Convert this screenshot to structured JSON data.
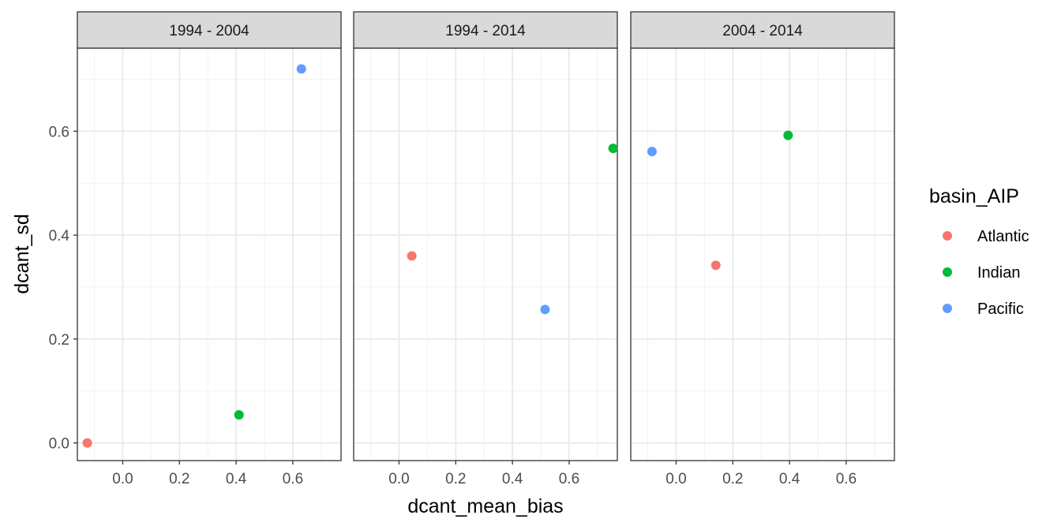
{
  "chart_data": {
    "type": "scatter",
    "xlabel": "dcant_mean_bias",
    "ylabel": "dcant_sd",
    "xlim": [
      -0.16,
      0.77
    ],
    "ylim": [
      -0.034,
      0.76
    ],
    "x_ticks": [
      0.0,
      0.2,
      0.4,
      0.6
    ],
    "x_tick_labels": [
      "0.0",
      "0.2",
      "0.4",
      "0.6"
    ],
    "y_ticks": [
      0.0,
      0.2,
      0.4,
      0.6
    ],
    "y_tick_labels": [
      "0.0",
      "0.2",
      "0.4",
      "0.6"
    ],
    "grid": true,
    "legend": {
      "title": "basin_AIP",
      "placement": "right",
      "items": [
        {
          "label": "Atlantic",
          "color": "#F8766D"
        },
        {
          "label": "Indian",
          "color": "#00BA38"
        },
        {
          "label": "Pacific",
          "color": "#619CFF"
        }
      ]
    },
    "facets": [
      {
        "label": "1994 - 2004",
        "points": [
          {
            "series": "Atlantic",
            "x": -0.125,
            "y": 0.0
          },
          {
            "series": "Indian",
            "x": 0.41,
            "y": 0.054
          },
          {
            "series": "Pacific",
            "x": 0.63,
            "y": 0.72
          }
        ]
      },
      {
        "label": "1994 - 2014",
        "points": [
          {
            "series": "Atlantic",
            "x": 0.045,
            "y": 0.36
          },
          {
            "series": "Indian",
            "x": 0.755,
            "y": 0.567
          },
          {
            "series": "Pacific",
            "x": 0.515,
            "y": 0.257
          }
        ]
      },
      {
        "label": "2004 - 2014",
        "points": [
          {
            "series": "Atlantic",
            "x": 0.14,
            "y": 0.342
          },
          {
            "series": "Indian",
            "x": 0.395,
            "y": 0.592
          },
          {
            "series": "Pacific",
            "x": -0.085,
            "y": 0.561
          }
        ]
      }
    ]
  }
}
